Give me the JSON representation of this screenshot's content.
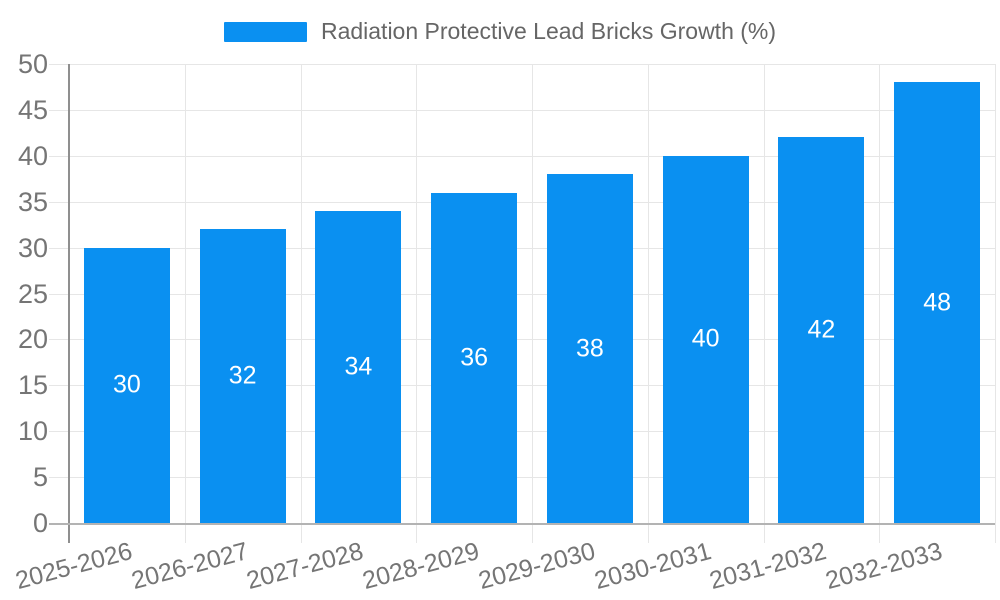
{
  "legend": {
    "label": "Radiation Protective Lead Bricks Growth (%)"
  },
  "chart_data": {
    "type": "bar",
    "title": "Radiation Protective Lead Bricks Growth (%)",
    "categories": [
      "2025-2026",
      "2026-2027",
      "2027-2028",
      "2028-2029",
      "2029-2030",
      "2030-2031",
      "2031-2032",
      "2032-2033"
    ],
    "values": [
      30,
      32,
      34,
      36,
      38,
      40,
      42,
      48
    ],
    "xlabel": "",
    "ylabel": "",
    "ylim": [
      0,
      50
    ],
    "y_ticks": [
      0,
      5,
      10,
      15,
      20,
      25,
      30,
      35,
      40,
      45,
      50
    ],
    "grid": "on",
    "legend_position": "top-center",
    "value_label_position": "inside-center",
    "colors": {
      "bar": "#0a90f1",
      "grid_line": "#e6e6e6",
      "x_axis_line": "#b3b3b3",
      "y_axis_line": "#8f8f8f",
      "tick_label": "#757575",
      "legend_text": "#666666",
      "value_label": "#ffffff",
      "background": "#ffffff"
    }
  }
}
